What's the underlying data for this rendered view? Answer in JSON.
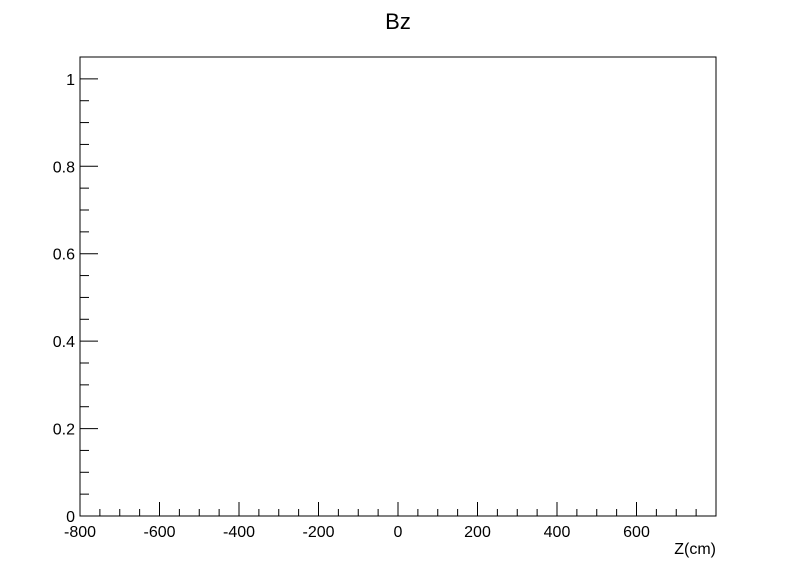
{
  "chart_data": {
    "type": "line",
    "title": "Bz",
    "xlabel": "Z(cm)",
    "ylabel": "",
    "xlim": [
      -800,
      800
    ],
    "ylim": [
      0,
      1.05
    ],
    "x_major_ticks": [
      -800,
      -600,
      -400,
      -200,
      0,
      200,
      400,
      600
    ],
    "x_tick_labels": [
      "-800",
      "-600",
      "-400",
      "-200",
      "0",
      "200",
      "400",
      "600"
    ],
    "x_minor_step": 50,
    "y_major_ticks": [
      0,
      0.2,
      0.4,
      0.6,
      0.8,
      1
    ],
    "y_tick_labels": [
      "0",
      "0.2",
      "0.4",
      "0.6",
      "0.8",
      "1"
    ],
    "y_minor_step": 0.05,
    "grid": false,
    "series": []
  }
}
